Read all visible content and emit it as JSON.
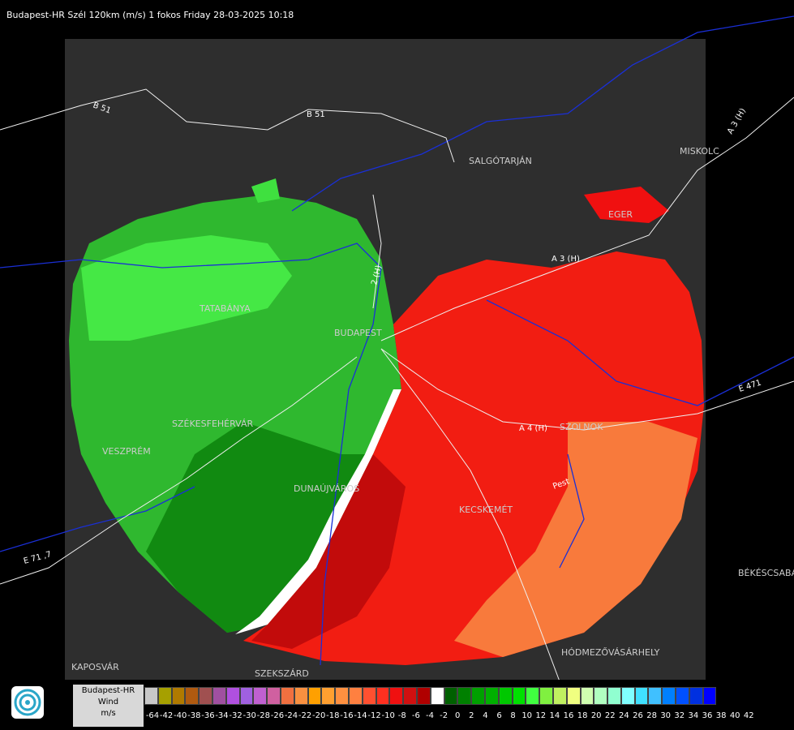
{
  "header": {
    "title": "Budapest-HR Szél 120km (m/s) 1 fokos Friday 28-03-2025 10:18"
  },
  "cities": [
    {
      "id": "salgotarjan",
      "label": "SALGÓTARJÁN"
    },
    {
      "id": "miskolc",
      "label": "MISKOLC"
    },
    {
      "id": "eger",
      "label": "EGER"
    },
    {
      "id": "tatabanya",
      "label": "TATABÁNYA"
    },
    {
      "id": "budapest",
      "label": "BUDAPEST"
    },
    {
      "id": "szekesfehervar",
      "label": "SZÉKESFEHÉRVÁR"
    },
    {
      "id": "veszprem",
      "label": "VESZPRÉM"
    },
    {
      "id": "dunaujvaros",
      "label": "DUNAÚJVÁROS"
    },
    {
      "id": "kecskemet",
      "label": "KECSKEMÉT"
    },
    {
      "id": "szolnok",
      "label": "SZOLNOK"
    },
    {
      "id": "kaposvar",
      "label": "KAPOSVÁR"
    },
    {
      "id": "szekszard",
      "label": "SZEKSZÁRD"
    },
    {
      "id": "hodmezovasarhely",
      "label": "HÓDMEZŐVÁSÁRHELY"
    },
    {
      "id": "bekescsaba",
      "label": "BÉKÉSCSABA"
    }
  ],
  "roads": [
    {
      "id": "b51-west",
      "label": "B 51"
    },
    {
      "id": "b51-east",
      "label": "B 51"
    },
    {
      "id": "a3-north",
      "label": "A 3 (H)"
    },
    {
      "id": "a3-mid",
      "label": "A 3 (H)"
    },
    {
      "id": "a4",
      "label": "A 4 (H)"
    },
    {
      "id": "e471",
      "label": "E 471"
    },
    {
      "id": "e71",
      "label": "E 71 ,7"
    },
    {
      "id": "m2",
      "label": "2 (H)"
    },
    {
      "id": "pest",
      "label": "Pest"
    }
  ],
  "legend": {
    "title_lines": [
      "Budapest-HR",
      "Wind",
      "m/s"
    ],
    "colors": [
      "#c8c8c8",
      "#a6a000",
      "#b07a00",
      "#b05a10",
      "#a05050",
      "#a050a0",
      "#b050e0",
      "#a060e0",
      "#c060d0",
      "#d060a0",
      "#f07040",
      "#f89040",
      "#ffa000",
      "#ffa030",
      "#ff9040",
      "#ff8040",
      "#ff5030",
      "#ff3020",
      "#f01010",
      "#d01010",
      "#b00000",
      "#ffffff",
      "#006000",
      "#008000",
      "#00a000",
      "#00b000",
      "#00c800",
      "#00e000",
      "#40ff40",
      "#80f040",
      "#c0f060",
      "#f0ff80",
      "#d0ffb0",
      "#b0ffc0",
      "#90ffd0",
      "#80ffff",
      "#40e0ff",
      "#40c0ff",
      "#0080ff",
      "#0050ff",
      "#0030e0",
      "#0000ff"
    ],
    "ticks": [
      "-64",
      "-42",
      "-40",
      "-38",
      "-36",
      "-34",
      "-32",
      "-30",
      "-28",
      "-26",
      "-24",
      "-22",
      "-20",
      "-18",
      "-16",
      "-14",
      "-12",
      "-10",
      "-8",
      "-6",
      "-4",
      "-2",
      "0",
      "2",
      "4",
      "6",
      "8",
      "10",
      "12",
      "14",
      "16",
      "18",
      "20",
      "22",
      "24",
      "26",
      "28",
      "30",
      "32",
      "34",
      "36",
      "38",
      "40",
      "42"
    ]
  }
}
